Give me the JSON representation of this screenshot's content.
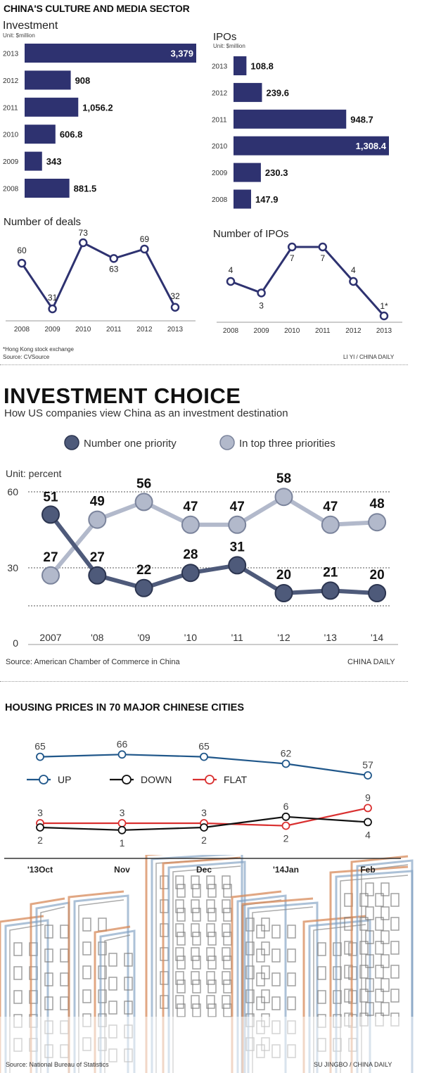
{
  "colors": {
    "navy": "#2e3270",
    "slate_dark": "#4e5a7a",
    "slate_light": "#b2b9cb",
    "up": "#20578a",
    "down": "#111111",
    "flat": "#d93030",
    "orange": "#d78a5a",
    "blue": "#7f9fc2"
  },
  "section1": {
    "title": "CHINA'S CULTURE AND MEDIA SECTOR",
    "footnote": "*Hong Kong stock exchange",
    "source": "Source: CVSource",
    "credit": "LI YI / CHINA DAILY"
  },
  "section2": {
    "title": "INVESTMENT CHOICE",
    "subtitle": "How US companies view China as an investment destination",
    "source": "Source: American Chamber of Commerce in China",
    "credit": "CHINA DAILY"
  },
  "section3": {
    "title": "HOUSING PRICES IN 70 MAJOR CHINESE CITIES",
    "source": "Source: National Bureau of Statistics",
    "credit": "SU JINGBO / CHINA DAILY"
  },
  "chart_data": [
    {
      "type": "bar",
      "title": "Investment",
      "unit": "Unit: $million",
      "orientation": "horizontal",
      "categories": [
        "2013",
        "2012",
        "2011",
        "2010",
        "2009",
        "2008"
      ],
      "values": [
        3379,
        908,
        1056.2,
        606.8,
        343,
        881.5
      ],
      "labels": [
        "3,379",
        "908",
        "1,056.2",
        "606.8",
        "343",
        "881.5"
      ]
    },
    {
      "type": "bar",
      "title": "IPOs",
      "unit": "Unit: $million",
      "orientation": "horizontal",
      "categories": [
        "2013",
        "2012",
        "2011",
        "2010",
        "2009",
        "2008"
      ],
      "values": [
        108.8,
        239.6,
        948.7,
        1308.4,
        230.3,
        147.9
      ],
      "labels": [
        "108.8",
        "239.6",
        "948.7",
        "1,308.4",
        "230.3",
        "147.9"
      ]
    },
    {
      "type": "line",
      "title": "Number of deals",
      "x": [
        "2008",
        "2009",
        "2010",
        "2011",
        "2012",
        "2013"
      ],
      "values": [
        60,
        31,
        73,
        63,
        69,
        32
      ],
      "labels": [
        "60",
        "31",
        "73",
        "63",
        "69",
        "32"
      ]
    },
    {
      "type": "line",
      "title": "Number of IPOs",
      "x": [
        "2008",
        "2009",
        "2010",
        "2011",
        "2012",
        "2013"
      ],
      "values": [
        4,
        3,
        7,
        7,
        4,
        1
      ],
      "labels": [
        "4",
        "3",
        "7",
        "7",
        "4",
        "1*"
      ]
    },
    {
      "type": "line",
      "unit": "Unit: percent",
      "x": [
        "2007",
        "'08",
        "'09",
        "'10",
        "'11",
        "'12",
        "'13",
        "'14"
      ],
      "yticks": [
        "0",
        "30",
        "60"
      ],
      "ylim": [
        0,
        60
      ],
      "series": [
        {
          "name": "Number one priority",
          "values": [
            51,
            27,
            22,
            28,
            31,
            20,
            21,
            20
          ]
        },
        {
          "name": "In top three priorities",
          "values": [
            27,
            49,
            56,
            47,
            47,
            58,
            47,
            48
          ]
        }
      ]
    },
    {
      "type": "line",
      "x": [
        "'13Oct",
        "Nov",
        "Dec",
        "'14Jan",
        "Feb"
      ],
      "series": [
        {
          "name": "UP",
          "values": [
            65,
            66,
            65,
            62,
            57
          ]
        },
        {
          "name": "DOWN",
          "values": [
            2,
            1,
            2,
            6,
            4
          ]
        },
        {
          "name": "FLAT",
          "values": [
            3,
            3,
            3,
            2,
            9
          ]
        }
      ]
    }
  ]
}
